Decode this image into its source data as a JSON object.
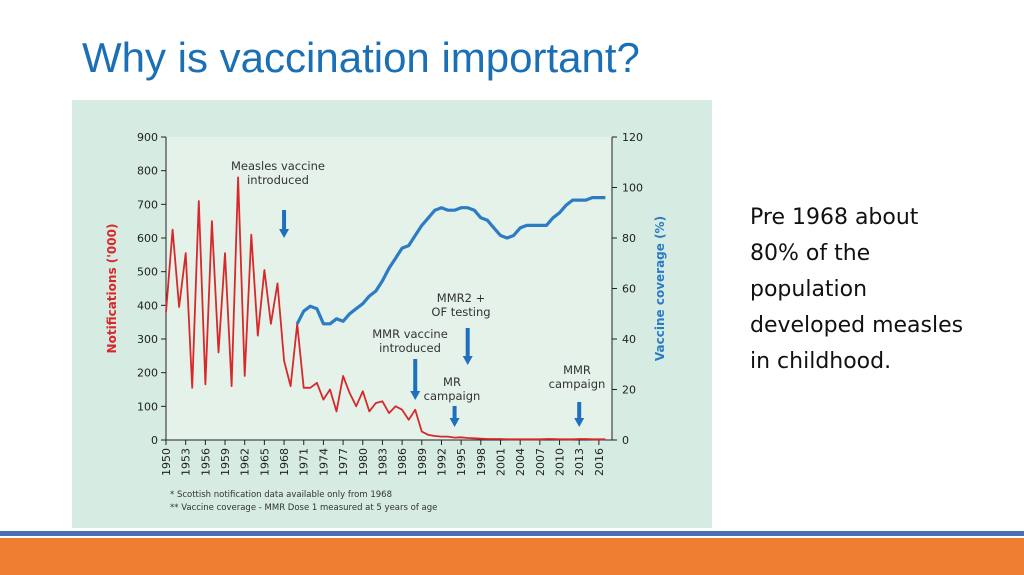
{
  "slide": {
    "title": "Why is vaccination important?",
    "body_lines": [
      "Pre 1968 about",
      "80% of the",
      "population",
      "developed measles",
      "in childhood."
    ]
  },
  "colors": {
    "title": "#1a6fb5",
    "notifications": "#d8282a",
    "coverage": "#2c7cc4",
    "arrow": "#1f6fbf",
    "panel": "#d6ebe1",
    "plot": "#e4f2ea",
    "bar_blue": "#4a6fb5",
    "bar_orange": "#ed7d31"
  },
  "chart_data": {
    "type": "line",
    "xlabel": "",
    "ylabel": "Notifications ('000)",
    "ylabel_right": "Vaccine coverage (%)",
    "xlim": [
      1950,
      2018
    ],
    "ylim": [
      0,
      900
    ],
    "ylim_right": [
      0,
      120
    ],
    "x_ticks": [
      1950,
      1953,
      1956,
      1959,
      1962,
      1965,
      1968,
      1971,
      1974,
      1977,
      1980,
      1983,
      1986,
      1989,
      1992,
      1995,
      1998,
      2001,
      2004,
      2007,
      2010,
      2013,
      2016
    ],
    "y_ticks": [
      0,
      100,
      200,
      300,
      400,
      500,
      600,
      700,
      800,
      900
    ],
    "y_ticks_right": [
      0,
      20,
      40,
      60,
      80,
      100,
      120
    ],
    "series": [
      {
        "axis": "left",
        "x": [
          1950,
          1951,
          1952,
          1953,
          1954,
          1955,
          1956,
          1957,
          1958,
          1959,
          1960,
          1961,
          1962,
          1963,
          1964,
          1965,
          1966,
          1967,
          1968,
          1969,
          1970,
          1971,
          1972,
          1973,
          1974,
          1975,
          1976,
          1977,
          1978,
          1979,
          1980,
          1981,
          1982,
          1983,
          1984,
          1985,
          1986,
          1987,
          1988,
          1989,
          1990,
          1991,
          1992,
          1993,
          1994,
          1995,
          1996,
          1997,
          1998,
          1999,
          2000,
          2001,
          2002,
          2003,
          2004,
          2005,
          2006,
          2007,
          2008,
          2009,
          2010,
          2011,
          2012,
          2013,
          2014,
          2015,
          2016,
          2017
        ],
        "values": [
          380,
          625,
          395,
          555,
          155,
          710,
          165,
          650,
          260,
          555,
          160,
          780,
          190,
          610,
          310,
          505,
          345,
          465,
          235,
          160,
          345,
          155,
          155,
          170,
          120,
          150,
          85,
          190,
          140,
          100,
          145,
          85,
          110,
          115,
          80,
          100,
          90,
          60,
          90,
          25,
          15,
          12,
          10,
          10,
          7,
          8,
          6,
          5,
          4,
          3,
          3,
          3,
          2,
          2,
          2,
          2,
          2,
          2,
          3,
          3,
          2,
          2,
          2,
          3,
          3,
          2,
          2,
          2
        ]
      },
      {
        "axis": "right",
        "x": [
          1970,
          1971,
          1972,
          1973,
          1974,
          1975,
          1976,
          1977,
          1978,
          1979,
          1980,
          1981,
          1982,
          1983,
          1984,
          1985,
          1986,
          1987,
          1988,
          1989,
          1990,
          1991,
          1992,
          1993,
          1994,
          1995,
          1996,
          1997,
          1998,
          1999,
          2000,
          2001,
          2002,
          2003,
          2004,
          2005,
          2006,
          2007,
          2008,
          2009,
          2010,
          2011,
          2012,
          2013,
          2014,
          2015,
          2016,
          2017
        ],
        "values": [
          46,
          51,
          53,
          52,
          46,
          46,
          48,
          47,
          50,
          52,
          54,
          57,
          59,
          63,
          68,
          72,
          76,
          77,
          81,
          85,
          88,
          91,
          92,
          91,
          91,
          92,
          92,
          91,
          88,
          87,
          84,
          81,
          80,
          81,
          84,
          85,
          85,
          85,
          85,
          88,
          90,
          93,
          95,
          95,
          95,
          96,
          96,
          96
        ]
      }
    ],
    "annotations": [
      {
        "lines": [
          "Measles vaccine",
          "introduced"
        ],
        "x": 1968
      },
      {
        "lines": [
          "MMR2 +",
          "OF testing"
        ],
        "x": 1996
      },
      {
        "lines": [
          "MMR vaccine",
          "introduced"
        ],
        "x": 1988
      },
      {
        "lines": [
          "MR",
          "campaign"
        ],
        "x": 1994
      },
      {
        "lines": [
          "MMR",
          "campaign"
        ],
        "x": 2013
      }
    ],
    "footnotes": [
      "* Scottish notification data available only from 1968",
      "** Vaccine coverage - MMR Dose 1 measured at 5 years of age"
    ]
  }
}
